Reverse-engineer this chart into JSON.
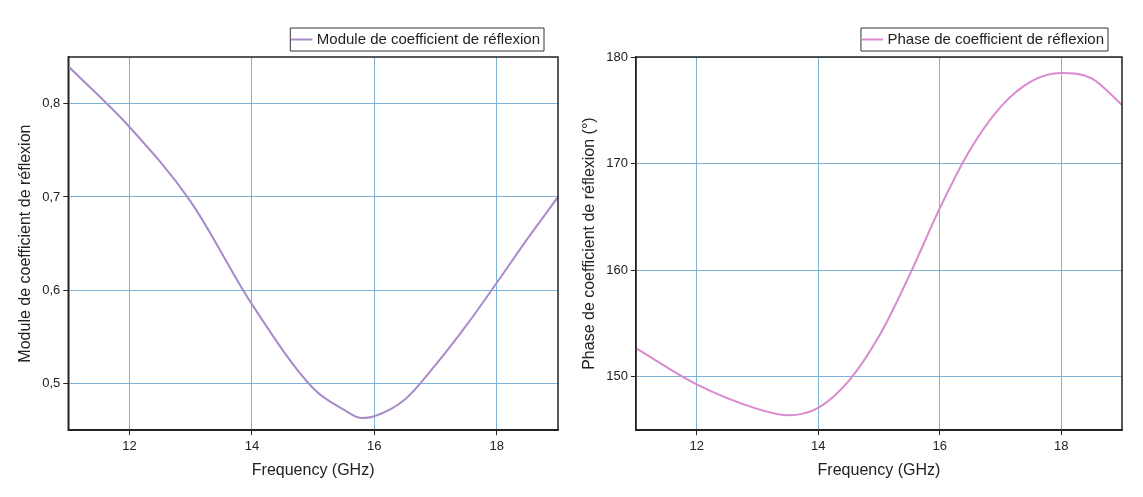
{
  "chart_data": [
    {
      "type": "line",
      "xlabel": "Frequency (GHz)",
      "ylabel": "Module de coefficient de réflexion",
      "x": [
        11,
        12,
        13,
        14,
        15,
        15.5,
        15.8,
        16,
        16.5,
        17,
        17.5,
        18,
        18.5,
        19
      ],
      "series": [
        {
          "name": "Module de coefficient de réflexion",
          "color": "#a98bc9",
          "values": [
            0.84,
            0.775,
            0.695,
            0.585,
            0.495,
            0.472,
            0.463,
            0.465,
            0.483,
            0.52,
            0.562,
            0.608,
            0.655,
            0.7
          ]
        }
      ],
      "xlim": [
        11,
        19
      ],
      "ylim": [
        0.45,
        0.85
      ],
      "xticks": [
        12,
        14,
        16,
        18
      ],
      "yticks": [
        {
          "value": 0.5,
          "label": "0,5"
        },
        {
          "value": 0.6,
          "label": "0,6"
        },
        {
          "value": 0.7,
          "label": "0,7"
        },
        {
          "value": 0.8,
          "label": "0,8"
        }
      ],
      "grid": true,
      "legend": "top right",
      "marker": "none",
      "line_style": "solid"
    },
    {
      "type": "line",
      "xlabel": "Frequency (GHz)",
      "ylabel": "Phase de coefficient de réflexion (°)",
      "x": [
        11,
        12,
        13,
        13.5,
        14,
        14.5,
        15,
        15.5,
        16,
        16.5,
        17,
        17.5,
        18,
        18.5,
        19
      ],
      "series": [
        {
          "name": "Phase de coefficient de réflexion",
          "color": "#d98ad0",
          "values": [
            152.7,
            149.3,
            147.0,
            146.4,
            147.1,
            149.6,
            153.8,
            159.5,
            165.8,
            171.3,
            175.3,
            177.7,
            178.5,
            178.0,
            175.5
          ]
        }
      ],
      "xlim": [
        11,
        19
      ],
      "ylim": [
        145,
        180
      ],
      "xticks": [
        12,
        14,
        16,
        18
      ],
      "yticks": [
        150,
        160,
        170,
        180
      ],
      "grid": true,
      "legend": "top right",
      "marker": "none",
      "line_style": "solid"
    }
  ]
}
